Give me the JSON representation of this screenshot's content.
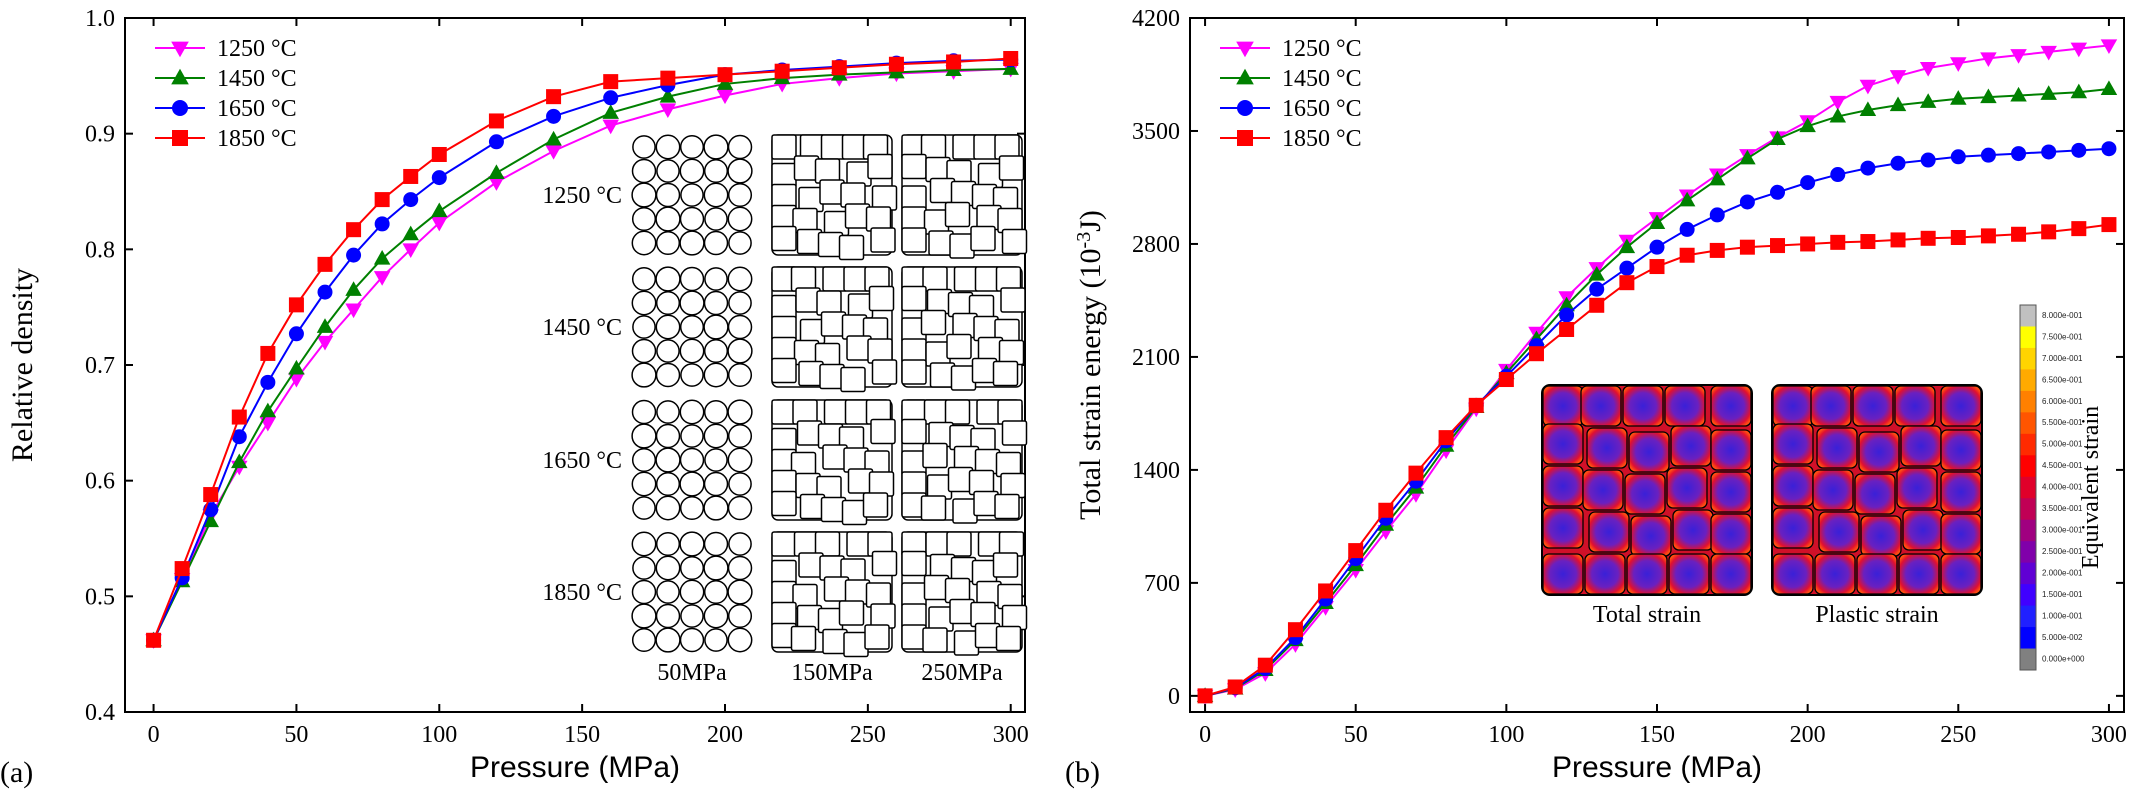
{
  "chart_data": [
    {
      "type": "line",
      "panel_label": "(a)",
      "xlabel": "Pressure (MPa)",
      "ylabel": "Relative density",
      "xlim": [
        -10,
        305
      ],
      "ylim": [
        0.4,
        1.0
      ],
      "xticks": [
        "0",
        "50",
        "100",
        "150",
        "200",
        "250",
        "300"
      ],
      "yticks": [
        "0.4",
        "0.5",
        "0.6",
        "0.7",
        "0.8",
        "0.9",
        "1.0"
      ],
      "legend_position": "top-left",
      "x": [
        0,
        10,
        20,
        30,
        40,
        50,
        60,
        70,
        80,
        90,
        100,
        120,
        140,
        160,
        180,
        200,
        220,
        240,
        260,
        280,
        300
      ],
      "series": [
        {
          "name": "1250 °C",
          "marker": "triangle-down",
          "color": "#ff00ff",
          "values": [
            0.462,
            0.515,
            0.57,
            0.612,
            0.65,
            0.688,
            0.72,
            0.748,
            0.776,
            0.8,
            0.823,
            0.858,
            0.885,
            0.907,
            0.921,
            0.933,
            0.943,
            0.948,
            0.952,
            0.954,
            0.956
          ]
        },
        {
          "name": "1450 °C",
          "marker": "triangle-up",
          "color": "#008000",
          "values": [
            0.462,
            0.513,
            0.565,
            0.616,
            0.66,
            0.697,
            0.733,
            0.765,
            0.792,
            0.813,
            0.833,
            0.866,
            0.895,
            0.918,
            0.932,
            0.943,
            0.948,
            0.951,
            0.953,
            0.955,
            0.956
          ]
        },
        {
          "name": "1650 °C",
          "marker": "circle",
          "color": "#0000ff",
          "values": [
            0.462,
            0.516,
            0.575,
            0.638,
            0.685,
            0.727,
            0.763,
            0.795,
            0.822,
            0.843,
            0.862,
            0.893,
            0.915,
            0.931,
            0.942,
            0.951,
            0.955,
            0.958,
            0.961,
            0.963,
            0.964
          ]
        },
        {
          "name": "1850 °C",
          "marker": "square",
          "color": "#ff0000",
          "values": [
            0.462,
            0.524,
            0.588,
            0.655,
            0.71,
            0.752,
            0.787,
            0.817,
            0.843,
            0.863,
            0.882,
            0.911,
            0.932,
            0.945,
            0.948,
            0.951,
            0.954,
            0.957,
            0.96,
            0.962,
            0.965
          ]
        }
      ],
      "inset": {
        "row_labels": [
          "1250 °C",
          "1450 °C",
          "1650 °C",
          "1850 °C"
        ],
        "col_labels": [
          "50MPa",
          "150MPa",
          "250MPa"
        ]
      }
    },
    {
      "type": "line",
      "panel_label": "(b)",
      "xlabel": "Pressure (MPa)",
      "ylabel_main": "Total strain energy (10",
      "ylabel_sup": "-3",
      "ylabel_tail": "J)",
      "xlim": [
        -5,
        305
      ],
      "ylim": [
        -100,
        4200
      ],
      "xticks": [
        "0",
        "50",
        "100",
        "150",
        "200",
        "250",
        "300"
      ],
      "yticks": [
        "0",
        "700",
        "1400",
        "2100",
        "2800",
        "3500",
        "4200"
      ],
      "legend_position": "top-left",
      "x": [
        0,
        10,
        20,
        30,
        40,
        50,
        60,
        70,
        80,
        90,
        100,
        110,
        120,
        130,
        140,
        150,
        160,
        170,
        180,
        190,
        200,
        210,
        220,
        230,
        240,
        250,
        260,
        270,
        280,
        290,
        300
      ],
      "series": [
        {
          "name": "1250 °C",
          "marker": "triangle-down",
          "color": "#ff00ff",
          "values": [
            0,
            40,
            140,
            320,
            550,
            780,
            1020,
            1250,
            1520,
            1780,
            2020,
            2250,
            2470,
            2650,
            2820,
            2960,
            3100,
            3230,
            3350,
            3460,
            3560,
            3680,
            3780,
            3840,
            3890,
            3920,
            3950,
            3970,
            3990,
            4010,
            4030
          ]
        },
        {
          "name": "1450 °C",
          "marker": "triangle-up",
          "color": "#008000",
          "values": [
            0,
            45,
            160,
            345,
            575,
            810,
            1060,
            1290,
            1550,
            1790,
            2000,
            2210,
            2420,
            2610,
            2780,
            2930,
            3070,
            3200,
            3330,
            3450,
            3530,
            3590,
            3630,
            3660,
            3680,
            3700,
            3710,
            3720,
            3730,
            3740,
            3760
          ]
        },
        {
          "name": "1650 °C",
          "marker": "circle",
          "color": "#0000ff",
          "values": [
            0,
            50,
            170,
            360,
            600,
            850,
            1100,
            1330,
            1580,
            1800,
            1980,
            2170,
            2360,
            2520,
            2650,
            2780,
            2890,
            2980,
            3060,
            3120,
            3180,
            3230,
            3270,
            3300,
            3320,
            3340,
            3350,
            3360,
            3370,
            3380,
            3390
          ]
        },
        {
          "name": "1850 °C",
          "marker": "square",
          "color": "#ff0000",
          "values": [
            0,
            55,
            190,
            410,
            650,
            900,
            1150,
            1380,
            1600,
            1800,
            1960,
            2120,
            2270,
            2420,
            2560,
            2660,
            2730,
            2760,
            2780,
            2790,
            2800,
            2810,
            2815,
            2825,
            2835,
            2840,
            2850,
            2860,
            2875,
            2895,
            2920
          ]
        }
      ],
      "inset": {
        "left_caption": "Total strain",
        "right_caption": "Plastic strain",
        "colorbar_title": "Equivalent strain",
        "colorbar_ticks": [
          "8.000e-001",
          "7.500e-001",
          "7.000e-001",
          "6.500e-001",
          "6.000e-001",
          "5.500e-001",
          "5.000e-001",
          "4.500e-001",
          "4.000e-001",
          "3.500e-001",
          "3.000e-001",
          "2.500e-001",
          "2.000e-001",
          "1.500e-001",
          "1.000e-001",
          "5.000e-002",
          "0.000e+000"
        ],
        "colorbar_colors": [
          "#c0c0c0",
          "#ffff00",
          "#ffd400",
          "#ffaa00",
          "#ff8000",
          "#ff5500",
          "#ff2a00",
          "#ff0000",
          "#e0002a",
          "#c00055",
          "#a00080",
          "#8000aa",
          "#6000d4",
          "#4000ff",
          "#2020ff",
          "#0000ff",
          "#808080"
        ]
      }
    }
  ]
}
